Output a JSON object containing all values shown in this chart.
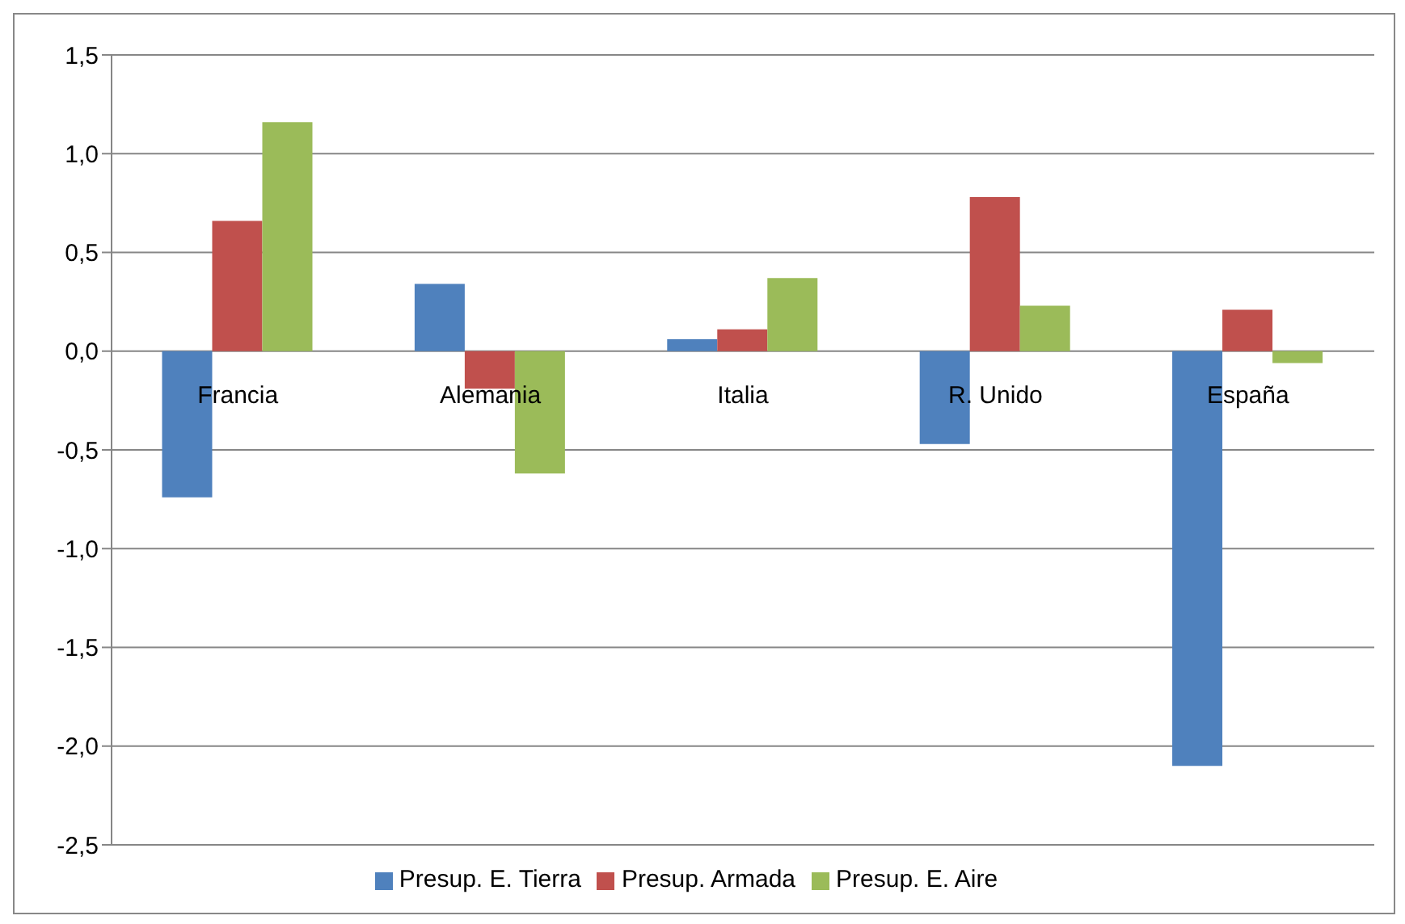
{
  "chart_data": {
    "type": "bar",
    "categories": [
      "Francia",
      "Alemania",
      "Italia",
      "R. Unido",
      "España"
    ],
    "series": [
      {
        "name": "Presup. E. Tierra",
        "color": "#4f81bd",
        "values": [
          -0.74,
          0.34,
          0.06,
          -0.47,
          -2.1
        ]
      },
      {
        "name": "Presup. Armada",
        "color": "#c0504d",
        "values": [
          0.66,
          -0.19,
          0.11,
          0.78,
          0.21
        ]
      },
      {
        "name": "Presup. E. Aire",
        "color": "#9bbb59",
        "values": [
          1.16,
          -0.62,
          0.37,
          0.23,
          -0.06
        ]
      }
    ],
    "ylim": [
      -2.5,
      1.5
    ],
    "yticks": [
      {
        "value": -2.5,
        "label": "-2,5"
      },
      {
        "value": -2,
        "label": "-2,0"
      },
      {
        "value": -1.5,
        "label": "-1,5"
      },
      {
        "value": -1,
        "label": "-1,0"
      },
      {
        "value": -0.5,
        "label": "-0,5"
      },
      {
        "value": 0,
        "label": "0,0"
      },
      {
        "value": 0.5,
        "label": "0,5"
      },
      {
        "value": 1,
        "label": "1,0"
      },
      {
        "value": 1.5,
        "label": "1,5"
      }
    ],
    "grid": "y",
    "legend": "bottom"
  }
}
